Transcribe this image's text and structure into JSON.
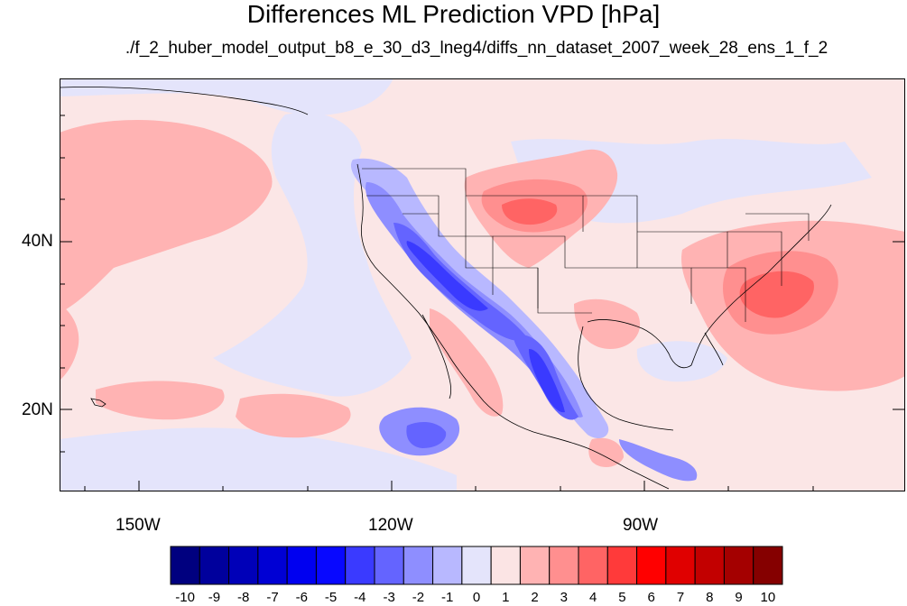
{
  "title": "Differences ML Prediction VPD [hPa]",
  "subtitle": "./f_2_huber_model_output_b8_e_30_d3_lneg4/diffs_nn_dataset_2007_week_28_ens_1_f_2",
  "axes": {
    "lat_labels": [
      "40N",
      "20N"
    ],
    "lon_labels": [
      "150W",
      "120W",
      "90W"
    ]
  },
  "colorbar": {
    "labels": [
      "-10",
      "-9",
      "-8",
      "-7",
      "-6",
      "-5",
      "-4",
      "-3",
      "-2",
      "-1",
      "0",
      "1",
      "2",
      "3",
      "4",
      "5",
      "6",
      "7",
      "8",
      "9",
      "10"
    ],
    "colors": [
      "#00007f",
      "#00009c",
      "#0000b8",
      "#0000d4",
      "#0000f0",
      "#0808ff",
      "#3a3aff",
      "#6464ff",
      "#8e8eff",
      "#b8b8ff",
      "#e4e4fb",
      "#fbe4e4",
      "#ffb3b3",
      "#ff8f8f",
      "#ff6464",
      "#ff3a3a",
      "#ff0000",
      "#e00000",
      "#c20000",
      "#a40000",
      "#850000"
    ]
  },
  "map_colors": {
    "ocean_background": "#fbe6e6",
    "light_blue": "#e4e4fb",
    "blue_2": "#b8b8ff",
    "blue_3": "#8e8eff",
    "blue_4": "#6464ff",
    "blue_5": "#3a3aff",
    "blue_6": "#0808ff",
    "red_1": "#ffb3b3",
    "red_2": "#ff8f8f",
    "red_3": "#ff6464",
    "coastline": "#000000"
  }
}
